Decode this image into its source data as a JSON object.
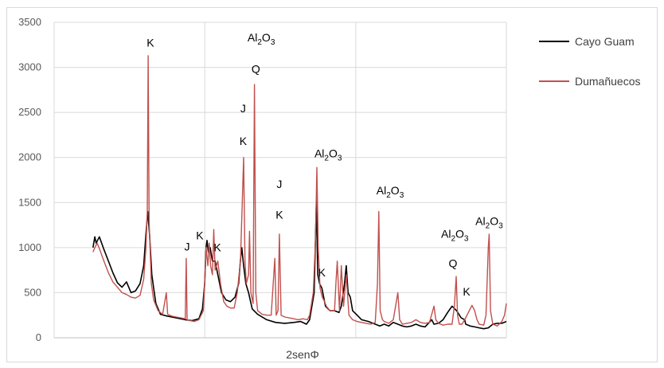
{
  "chart_data": {
    "type": "line",
    "title": "",
    "xlabel": "2senΦ",
    "ylabel": "",
    "ylim": [
      0,
      3500
    ],
    "yticks": [
      "0",
      "500",
      "1000",
      "1500",
      "2000",
      "2500",
      "3000",
      "3500"
    ],
    "xlim": [
      0,
      100
    ],
    "x_gridlines": [
      33.3,
      66.7
    ],
    "grid": "on",
    "legend_position": "right",
    "colors": {
      "Cayo Guam": "#000000",
      "Dumañuecos": "#c0504d"
    },
    "series": [
      {
        "name": "Cayo Guam",
        "values": [
          [
            8.6,
            1000
          ],
          [
            9,
            1120
          ],
          [
            9.3,
            1050
          ],
          [
            10,
            1120
          ],
          [
            11,
            980
          ],
          [
            12,
            850
          ],
          [
            13,
            720
          ],
          [
            14,
            610
          ],
          [
            15,
            560
          ],
          [
            16,
            620
          ],
          [
            17,
            500
          ],
          [
            18,
            520
          ],
          [
            19,
            600
          ],
          [
            19.8,
            800
          ],
          [
            20.3,
            1150
          ],
          [
            20.7,
            1400
          ],
          [
            21.1,
            1150
          ],
          [
            21.6,
            700
          ],
          [
            22,
            550
          ],
          [
            22.5,
            380
          ],
          [
            23.5,
            260
          ],
          [
            25,
            240
          ],
          [
            27,
            220
          ],
          [
            29,
            200
          ],
          [
            30.5,
            190
          ],
          [
            32,
            210
          ],
          [
            32.8,
            320
          ],
          [
            33.3,
            600
          ],
          [
            33.6,
            1000
          ],
          [
            33.8,
            1080
          ],
          [
            34.1,
            950
          ],
          [
            34.5,
            1000
          ],
          [
            35,
            850
          ],
          [
            35.6,
            850
          ],
          [
            36.2,
            700
          ],
          [
            37,
            500
          ],
          [
            38,
            420
          ],
          [
            39,
            400
          ],
          [
            40,
            450
          ],
          [
            40.8,
            600
          ],
          [
            41.2,
            860
          ],
          [
            41.5,
            1000
          ],
          [
            41.9,
            800
          ],
          [
            42.4,
            600
          ],
          [
            43,
            500
          ],
          [
            43.8,
            320
          ],
          [
            45,
            260
          ],
          [
            47,
            200
          ],
          [
            49,
            170
          ],
          [
            51,
            160
          ],
          [
            53,
            170
          ],
          [
            54.5,
            180
          ],
          [
            55.8,
            150
          ],
          [
            56.5,
            200
          ],
          [
            57.5,
            500
          ],
          [
            58,
            1520
          ],
          [
            58.3,
            700
          ],
          [
            58.7,
            600
          ],
          [
            59.2,
            550
          ],
          [
            60,
            350
          ],
          [
            61,
            300
          ],
          [
            62,
            300
          ],
          [
            63,
            280
          ],
          [
            63.5,
            350
          ],
          [
            64.2,
            600
          ],
          [
            64.6,
            800
          ],
          [
            65,
            500
          ],
          [
            65.5,
            450
          ],
          [
            66,
            300
          ],
          [
            67,
            250
          ],
          [
            68,
            200
          ],
          [
            69.5,
            180
          ],
          [
            71,
            150
          ],
          [
            72,
            130
          ],
          [
            73,
            150
          ],
          [
            74,
            130
          ],
          [
            75,
            170
          ],
          [
            76,
            150
          ],
          [
            77,
            130
          ],
          [
            78,
            120
          ],
          [
            79,
            130
          ],
          [
            80,
            150
          ],
          [
            81,
            130
          ],
          [
            82,
            120
          ],
          [
            83.5,
            200
          ],
          [
            84,
            150
          ],
          [
            85,
            160
          ],
          [
            86,
            200
          ],
          [
            87,
            280
          ],
          [
            88,
            350
          ],
          [
            89,
            300
          ],
          [
            90,
            220
          ],
          [
            90.8,
            200
          ],
          [
            91,
            150
          ],
          [
            92,
            130
          ],
          [
            93,
            120
          ],
          [
            94,
            110
          ],
          [
            95,
            100
          ],
          [
            96,
            110
          ],
          [
            97,
            150
          ],
          [
            98,
            160
          ],
          [
            99,
            160
          ],
          [
            100,
            180
          ]
        ]
      },
      {
        "name": "Dumañuecos",
        "values": [
          [
            8.6,
            950
          ],
          [
            9,
            1000
          ],
          [
            9.5,
            1050
          ],
          [
            10,
            990
          ],
          [
            11,
            850
          ],
          [
            12,
            720
          ],
          [
            13,
            620
          ],
          [
            14,
            560
          ],
          [
            15,
            500
          ],
          [
            16,
            480
          ],
          [
            17,
            450
          ],
          [
            18,
            440
          ],
          [
            19,
            470
          ],
          [
            19.8,
            650
          ],
          [
            20.3,
            1000
          ],
          [
            20.6,
            1400
          ],
          [
            20.8,
            3130
          ],
          [
            21,
            1300
          ],
          [
            21.5,
            600
          ],
          [
            22,
            420
          ],
          [
            23,
            300
          ],
          [
            24,
            260
          ],
          [
            24.8,
            500
          ],
          [
            25.1,
            260
          ],
          [
            26,
            240
          ],
          [
            27,
            230
          ],
          [
            28,
            220
          ],
          [
            29,
            210
          ],
          [
            29.2,
            880
          ],
          [
            29.4,
            200
          ],
          [
            30,
            190
          ],
          [
            31,
            180
          ],
          [
            32,
            200
          ],
          [
            33,
            300
          ],
          [
            33.3,
            600
          ],
          [
            33.6,
            1000
          ],
          [
            34,
            800
          ],
          [
            34.3,
            1050
          ],
          [
            34.6,
            800
          ],
          [
            35,
            700
          ],
          [
            35.3,
            1200
          ],
          [
            35.6,
            750
          ],
          [
            36.2,
            850
          ],
          [
            36.8,
            600
          ],
          [
            37.5,
            400
          ],
          [
            38.2,
            350
          ],
          [
            39,
            330
          ],
          [
            39.8,
            330
          ],
          [
            40.5,
            500
          ],
          [
            41.2,
            850
          ],
          [
            41.6,
            1500
          ],
          [
            41.9,
            2000
          ],
          [
            42.2,
            850
          ],
          [
            42.5,
            600
          ],
          [
            43,
            700
          ],
          [
            43.2,
            1180
          ],
          [
            43.5,
            500
          ],
          [
            44,
            380
          ],
          [
            44.3,
            2810
          ],
          [
            44.6,
            500
          ],
          [
            45,
            300
          ],
          [
            46,
            260
          ],
          [
            47,
            250
          ],
          [
            48,
            250
          ],
          [
            48.8,
            880
          ],
          [
            49.1,
            250
          ],
          [
            49.5,
            300
          ],
          [
            49.8,
            1150
          ],
          [
            50.2,
            250
          ],
          [
            51,
            230
          ],
          [
            52,
            220
          ],
          [
            53,
            210
          ],
          [
            54,
            200
          ],
          [
            55,
            210
          ],
          [
            56,
            200
          ],
          [
            56.5,
            250
          ],
          [
            57.3,
            500
          ],
          [
            57.8,
            1100
          ],
          [
            58.1,
            1890
          ],
          [
            58.4,
            1000
          ],
          [
            58.8,
            550
          ],
          [
            59.3,
            450
          ],
          [
            59.8,
            400
          ],
          [
            60.2,
            350
          ],
          [
            61,
            300
          ],
          [
            62,
            300
          ],
          [
            62.3,
            600
          ],
          [
            62.6,
            850
          ],
          [
            63.1,
            300
          ],
          [
            63.5,
            800
          ],
          [
            64,
            350
          ],
          [
            64.6,
            700
          ],
          [
            65.2,
            250
          ],
          [
            66,
            200
          ],
          [
            67,
            180
          ],
          [
            68,
            170
          ],
          [
            69,
            160
          ],
          [
            70,
            150
          ],
          [
            71,
            170
          ],
          [
            71.5,
            600
          ],
          [
            71.8,
            1400
          ],
          [
            72.1,
            300
          ],
          [
            72.6,
            200
          ],
          [
            73,
            180
          ],
          [
            74,
            160
          ],
          [
            75,
            200
          ],
          [
            76,
            500
          ],
          [
            76.4,
            200
          ],
          [
            77,
            150
          ],
          [
            78,
            160
          ],
          [
            79,
            170
          ],
          [
            80,
            200
          ],
          [
            81,
            170
          ],
          [
            82,
            160
          ],
          [
            83,
            170
          ],
          [
            84,
            350
          ],
          [
            84.4,
            200
          ],
          [
            85,
            160
          ],
          [
            86,
            140
          ],
          [
            87,
            150
          ],
          [
            88,
            150
          ],
          [
            88.5,
            350
          ],
          [
            88.9,
            680
          ],
          [
            89.2,
            250
          ],
          [
            89.6,
            150
          ],
          [
            90.2,
            150
          ],
          [
            91,
            220
          ],
          [
            91.8,
            300
          ],
          [
            92.4,
            360
          ],
          [
            93,
            300
          ],
          [
            93.5,
            200
          ],
          [
            94,
            150
          ],
          [
            95,
            140
          ],
          [
            95.5,
            250
          ],
          [
            96,
            1000
          ],
          [
            96.2,
            1150
          ],
          [
            96.5,
            300
          ],
          [
            97,
            150
          ],
          [
            98,
            130
          ],
          [
            99,
            180
          ],
          [
            99.6,
            250
          ],
          [
            100,
            380
          ]
        ]
      }
    ],
    "annotations": [
      {
        "base": "K",
        "sub": "",
        "x": 21.3,
        "y": 3230
      },
      {
        "base": "Al",
        "sub": "2",
        "tail": "O",
        "tail_sub": "3",
        "x": 45.8,
        "y": 3290
      },
      {
        "base": "Q",
        "sub": "",
        "x": 44.6,
        "y": 2940
      },
      {
        "base": "J",
        "sub": "",
        "x": 41.8,
        "y": 2500
      },
      {
        "base": "K",
        "sub": "",
        "x": 41.8,
        "y": 2140
      },
      {
        "base": "Al",
        "sub": "2",
        "tail": "O",
        "tail_sub": "3",
        "x": 60.6,
        "y": 2000
      },
      {
        "base": "J",
        "sub": "",
        "x": 49.8,
        "y": 1660
      },
      {
        "base": "Al",
        "sub": "2",
        "tail": "O",
        "tail_sub": "3",
        "x": 74.3,
        "y": 1590
      },
      {
        "base": "K",
        "sub": "",
        "x": 49.8,
        "y": 1320
      },
      {
        "base": "Al",
        "sub": "2",
        "tail": "O",
        "tail_sub": "3",
        "x": 88.6,
        "y": 1110
      },
      {
        "base": "Al",
        "sub": "2",
        "tail": "O",
        "tail_sub": "3",
        "x": 96.2,
        "y": 1250
      },
      {
        "base": "K",
        "sub": "",
        "x": 32.2,
        "y": 1090
      },
      {
        "base": "J",
        "sub": "",
        "x": 29.4,
        "y": 970
      },
      {
        "base": "K",
        "sub": "",
        "x": 36.1,
        "y": 960
      },
      {
        "base": "Q",
        "sub": "",
        "x": 88.2,
        "y": 780
      },
      {
        "base": "K",
        "sub": "",
        "x": 59.2,
        "y": 680
      },
      {
        "base": "K",
        "sub": "",
        "x": 91.2,
        "y": 470
      }
    ]
  }
}
